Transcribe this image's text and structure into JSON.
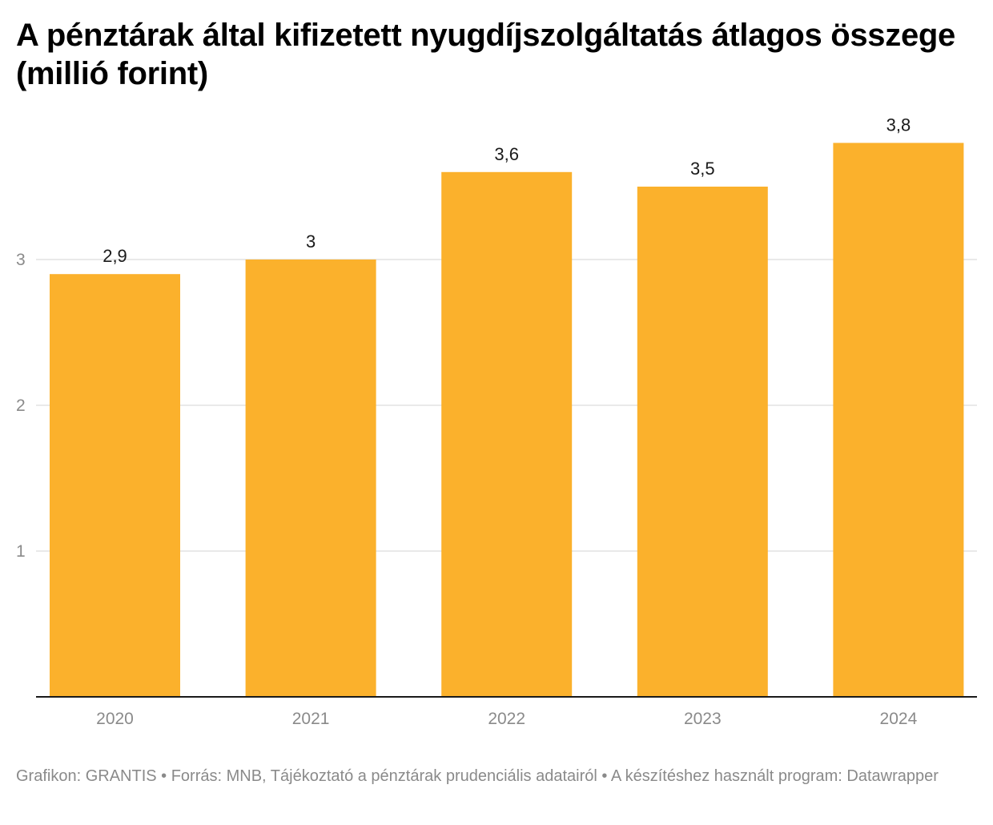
{
  "chart_data": {
    "type": "bar",
    "title": "A pénztárak által kifizetett nyugdíjszolgáltatás átlagos összege (millió forint)",
    "categories": [
      "2020",
      "2021",
      "2022",
      "2023",
      "2024"
    ],
    "values": [
      2.9,
      3.0,
      3.6,
      3.5,
      3.8
    ],
    "value_labels": [
      "2,9",
      "3",
      "3,6",
      "3,5",
      "3,8"
    ],
    "y_ticks": [
      1,
      2,
      3
    ],
    "ylim": [
      0,
      3.9
    ],
    "grid": true,
    "bar_color": "#fbb12c"
  },
  "footer": {
    "text": "Grafikon: GRANTIS • Forrás: MNB, Tájékoztató a pénztárak prudenciális adatairól  • A készítéshez használt program: Datawrapper"
  }
}
